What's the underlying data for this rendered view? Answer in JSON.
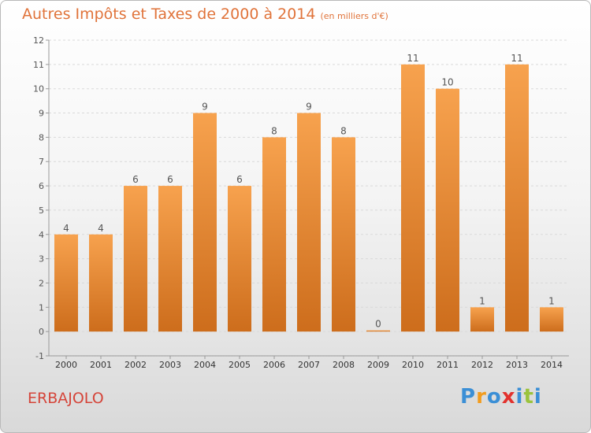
{
  "header": {
    "title": "Autres Impôts et Taxes de 2000 à 2014",
    "unit": "(en milliers d'€)"
  },
  "footer": {
    "commune": "ERBAJOLO",
    "logo": [
      "P",
      "r",
      "o",
      "x",
      "i",
      "t",
      "i"
    ],
    "logo_colors": [
      "#3b8fd6",
      "#f29c1e",
      "#3b8fd6",
      "#e2322e",
      "#3b8fd6",
      "#9bc33c",
      "#3b8fd6"
    ]
  },
  "colors": {
    "bar_light": "#f7a24e",
    "bar_dark": "#cd6d1c",
    "label": "#555555",
    "axis": "#999999",
    "grid": "#d9d9d9"
  },
  "chart_data": {
    "type": "bar",
    "title": "Autres Impôts et Taxes de 2000 à 2014",
    "subtitle": "(en milliers d'€)",
    "xlabel": "",
    "ylabel": "",
    "ylim": [
      -1,
      12
    ],
    "yticks": [
      -1,
      0,
      1,
      2,
      3,
      4,
      5,
      6,
      7,
      8,
      9,
      10,
      11,
      12
    ],
    "grid": true,
    "categories": [
      "2000",
      "2001",
      "2002",
      "2003",
      "2004",
      "2005",
      "2006",
      "2007",
      "2008",
      "2009",
      "2010",
      "2011",
      "2012",
      "2013",
      "2014"
    ],
    "values": [
      4,
      4,
      6,
      6,
      9,
      6,
      8,
      9,
      8,
      0,
      11,
      10,
      1,
      11,
      1
    ]
  }
}
